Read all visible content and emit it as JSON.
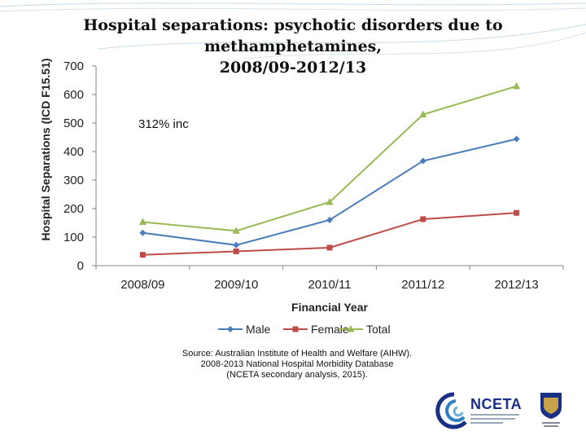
{
  "slide": {
    "title_line1": "Hospital separations: psychotic disorders due to methamphetamines,",
    "title_line2": "2008/09-2012/13",
    "source_lines": [
      "Source: Australian Institute of Health and Welfare (AIHW).",
      "2008-2013 National Hospital Morbidity Database",
      "(NCETA secondary analysis, 2015)."
    ],
    "logo_text": "NCETA"
  },
  "colors": {
    "male": "#4A7EBB",
    "female": "#BE4B48",
    "total": "#98B954",
    "axis": "#868686",
    "deco": "#9DBFD6"
  },
  "chart_data": {
    "type": "line",
    "categories": [
      "2008/09",
      "2009/10",
      "2010/11",
      "2011/12",
      "2012/13"
    ],
    "series": [
      {
        "name": "Male",
        "values": [
          115,
          72,
          160,
          367,
          444
        ],
        "marker": "diamond",
        "color": "#4A7EBB"
      },
      {
        "name": "Female",
        "values": [
          38,
          50,
          63,
          163,
          185
        ],
        "marker": "square",
        "color": "#BE4B48"
      },
      {
        "name": "Total",
        "values": [
          153,
          122,
          223,
          530,
          629
        ],
        "marker": "triangle",
        "color": "#98B954"
      }
    ],
    "xlabel": "Financial Year",
    "ylabel": "Hospital Separations (ICD F15.51)",
    "ylim": [
      0,
      700
    ],
    "yticks": [
      0,
      100,
      200,
      300,
      400,
      500,
      600,
      700
    ],
    "annotation": "312% inc",
    "grid": false,
    "legend": "bottom"
  }
}
